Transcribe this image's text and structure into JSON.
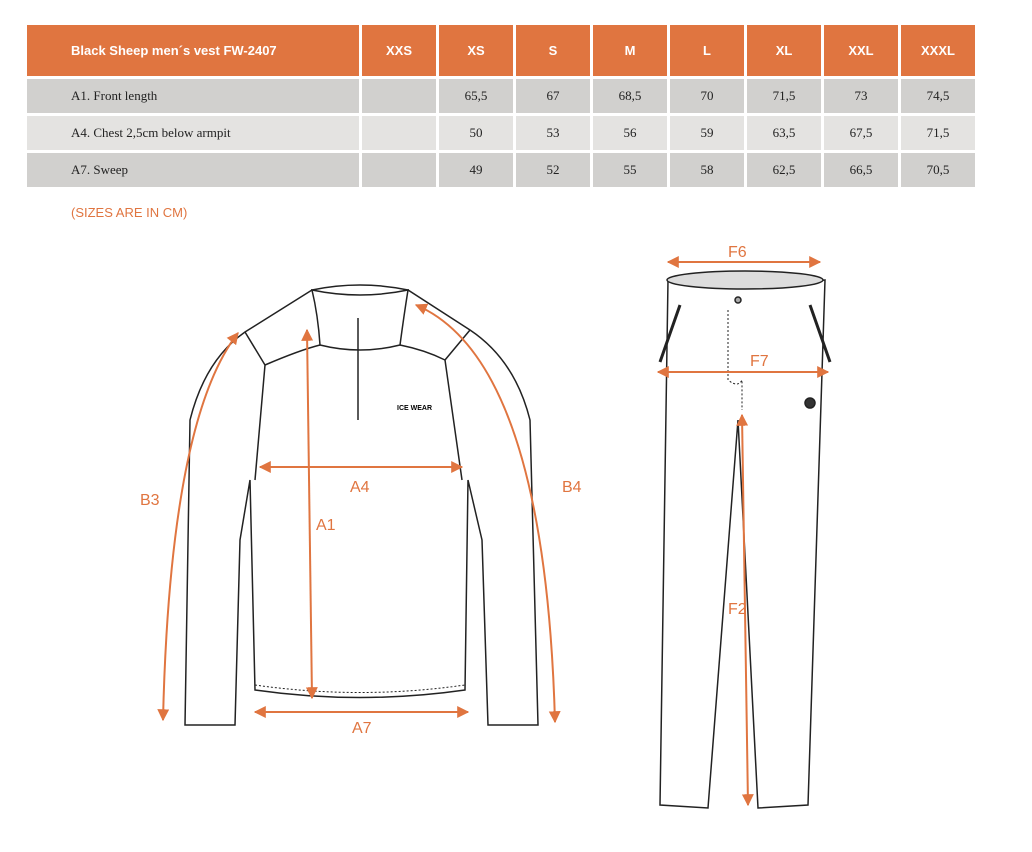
{
  "table": {
    "title": "Black Sheep men´s vest FW-2407",
    "sizes": [
      "XXS",
      "XS",
      "S",
      "M",
      "L",
      "XL",
      "XXL",
      "XXXL"
    ],
    "rows": [
      {
        "label": "A1. Front length",
        "values": [
          "",
          "65,5",
          "67",
          "68,5",
          "70",
          "71,5",
          "73",
          "74,5"
        ]
      },
      {
        "label": "A4. Chest 2,5cm below armpit",
        "values": [
          "",
          "50",
          "53",
          "56",
          "59",
          "63,5",
          "67,5",
          "71,5"
        ]
      },
      {
        "label": "A7. Sweep",
        "values": [
          "",
          "49",
          "52",
          "55",
          "58",
          "62,5",
          "66,5",
          "70,5"
        ]
      }
    ]
  },
  "note": "(SIZES ARE IN CM)",
  "diagram": {
    "labels": {
      "a1": "A1",
      "a4": "A4",
      "a7": "A7",
      "b3": "B3",
      "b4": "B4",
      "f2": "F2",
      "f6": "F6",
      "f7": "F7"
    },
    "logo": "ICE WEAR",
    "accent": "#e07540"
  }
}
